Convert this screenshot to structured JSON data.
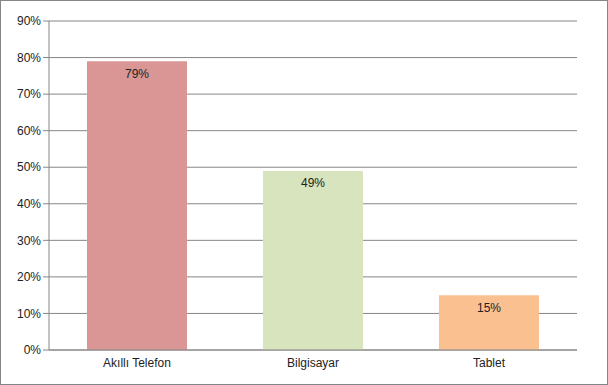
{
  "chart_data": {
    "type": "bar",
    "categories": [
      "Akıllı Telefon",
      "Bilgisayar",
      "Tablet"
    ],
    "values": [
      79,
      49,
      15
    ],
    "value_labels": [
      "79%",
      "49%",
      "15%"
    ],
    "colors": [
      "#d99694",
      "#d7e4bd",
      "#fac090"
    ],
    "ylim": [
      0,
      90
    ],
    "yticks": [
      {
        "value": 0,
        "label": "0%"
      },
      {
        "value": 10,
        "label": "10%"
      },
      {
        "value": 20,
        "label": "20%"
      },
      {
        "value": 30,
        "label": "30%"
      },
      {
        "value": 40,
        "label": "40%"
      },
      {
        "value": 50,
        "label": "50%"
      },
      {
        "value": 60,
        "label": "60%"
      },
      {
        "value": 70,
        "label": "70%"
      },
      {
        "value": 80,
        "label": "80%"
      },
      {
        "value": 90,
        "label": "90%"
      }
    ],
    "grid": true,
    "data_labels": true
  }
}
